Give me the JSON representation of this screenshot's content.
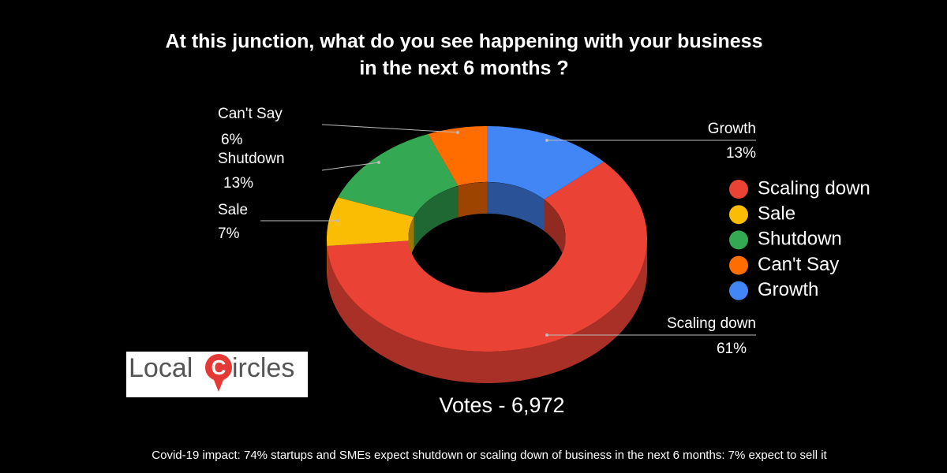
{
  "chart_data": {
    "type": "pie",
    "donut": true,
    "three_d": true,
    "title": [
      "At this junction, what do you see happening with your business",
      "in the next 6 months ?"
    ],
    "categories": [
      "Scaling down",
      "Sale",
      "Shutdown",
      "Can't Say",
      "Growth"
    ],
    "values": [
      61,
      7,
      13,
      6,
      13
    ],
    "value_labels": [
      "61%",
      "7%",
      "13%",
      "6%",
      "13%"
    ],
    "colors": [
      "#ea4335",
      "#fbbc04",
      "#34a853",
      "#ff6d01",
      "#4285f4"
    ],
    "legend": "right",
    "annotations": {
      "votes": "Votes - 6,972",
      "caption": "Covid-19 impact: 74% startups and SMEs expect shutdown or scaling down of business in the next 6 months: 7% expect to sell it"
    }
  },
  "logo": {
    "parts": [
      "Local",
      "C",
      "ircles"
    ]
  }
}
